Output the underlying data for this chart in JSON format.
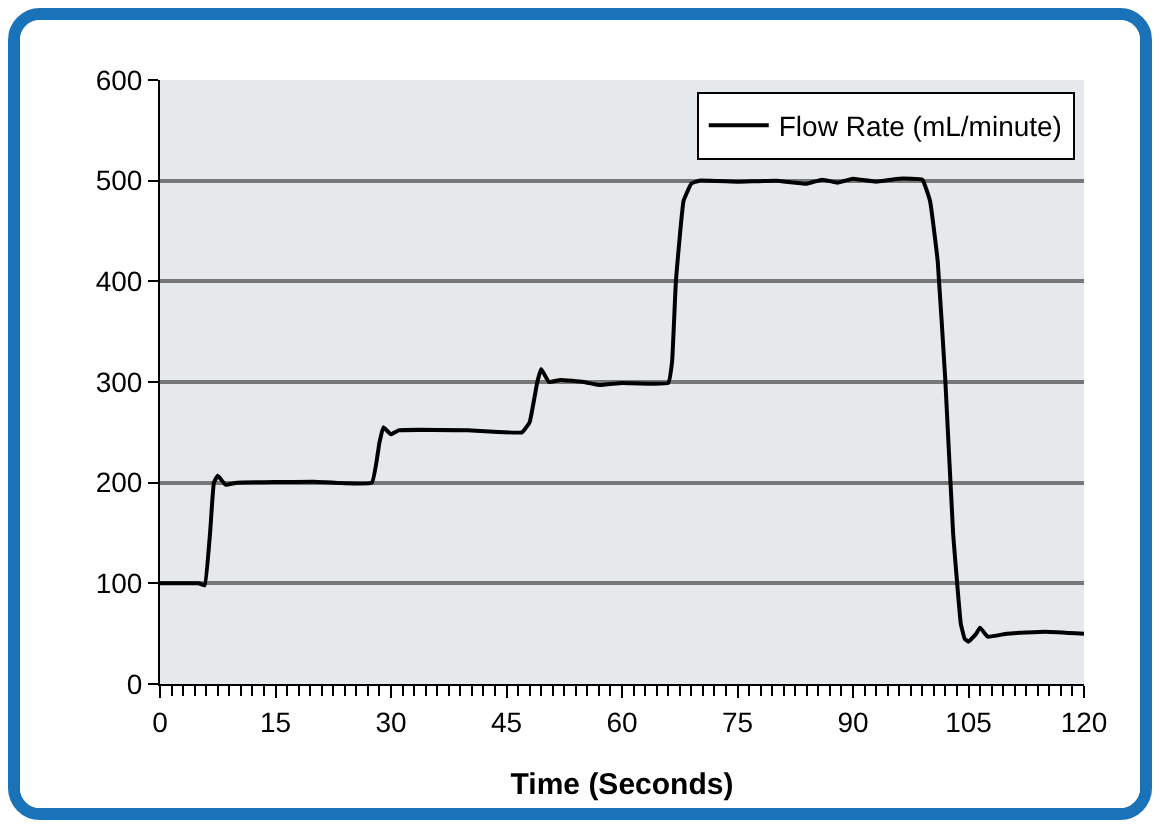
{
  "chart_data": {
    "type": "line",
    "xlabel": "Time (Seconds)",
    "x": [
      0,
      5,
      5.8,
      6.5,
      7,
      7.5,
      8.5,
      10,
      20,
      27.5,
      28.5,
      29,
      30,
      31,
      40,
      47,
      48,
      49,
      49.5,
      50.5,
      52,
      55,
      57,
      60,
      66,
      66.5,
      67,
      68,
      69,
      70,
      75,
      80,
      84,
      86,
      88,
      90,
      93,
      96,
      99,
      100,
      101,
      102,
      103,
      104,
      104.5,
      105,
      106,
      106.5,
      107.5,
      110,
      115,
      120
    ],
    "series": [
      {
        "name": "Flow Rate (mL/minute)",
        "color": "#000000",
        "values": [
          100,
          100,
          98,
          150,
          200,
          207,
          198,
          200,
          201,
          200,
          240,
          255,
          248,
          252,
          252,
          250,
          260,
          300,
          313,
          300,
          302,
          300,
          297,
          299,
          299,
          320,
          400,
          480,
          497,
          500,
          499,
          500,
          497,
          501,
          498,
          502,
          499,
          502,
          501,
          480,
          420,
          300,
          150,
          60,
          45,
          42,
          50,
          56,
          47,
          50,
          52,
          50
        ]
      }
    ],
    "xlim": [
      0,
      120
    ],
    "xticks": [
      0,
      15,
      30,
      45,
      60,
      75,
      90,
      105,
      120
    ],
    "ylim": [
      0,
      600
    ],
    "yticks": [
      0,
      100,
      200,
      300,
      400,
      500,
      600
    ],
    "grid": "y",
    "legend": "top right",
    "marker": "none",
    "line_style": "solid"
  }
}
